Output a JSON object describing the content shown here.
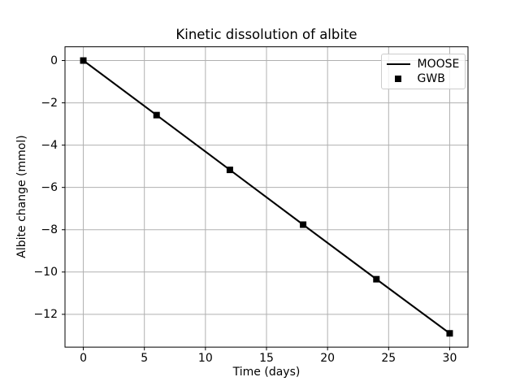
{
  "chart_data": {
    "type": "line",
    "title": "Kinetic dissolution of albite",
    "xlabel": "Time (days)",
    "ylabel": "Albite change (mmol)",
    "x": [
      0,
      6,
      12,
      18,
      24,
      30
    ],
    "series": [
      {
        "name": "MOOSE",
        "style": "solid_line",
        "color": "#000000",
        "values": [
          0,
          -2.58,
          -5.17,
          -7.76,
          -10.34,
          -12.9
        ]
      },
      {
        "name": "GWB",
        "style": "square_marker",
        "color": "#000000",
        "values": [
          0,
          -2.58,
          -5.17,
          -7.76,
          -10.34,
          -12.9
        ]
      }
    ],
    "x_ticks": [
      0,
      5,
      10,
      15,
      20,
      25,
      30
    ],
    "x_tick_labels": [
      "0",
      "5",
      "10",
      "15",
      "20",
      "25",
      "30"
    ],
    "y_ticks": [
      0,
      -2,
      -4,
      -6,
      -8,
      -10,
      -12
    ],
    "y_tick_labels": [
      "0",
      "−2",
      "−4",
      "−6",
      "−8",
      "−10",
      "−12"
    ],
    "xlim": [
      -1.5,
      31.5
    ],
    "ylim": [
      -13.55,
      0.65
    ],
    "grid": true,
    "legend": {
      "position": "upper right",
      "entries": [
        "MOOSE",
        "GWB"
      ]
    },
    "colors": {
      "background": "#ffffff",
      "grid": "#b0b0b0",
      "axes": "#000000",
      "text": "#000000",
      "legend_border": "#cccccc",
      "legend_bg": "rgba(255,255,255,0.8)"
    }
  }
}
